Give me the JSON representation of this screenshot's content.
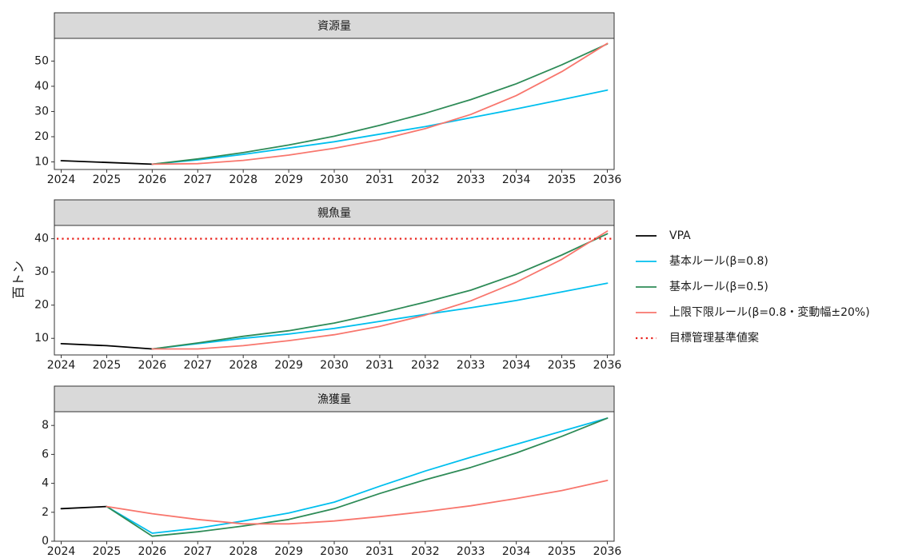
{
  "chart_data": {
    "type": "line",
    "ylabel": "百トン",
    "x": [
      2024,
      2025,
      2026,
      2027,
      2028,
      2029,
      2030,
      2031,
      2032,
      2033,
      2034,
      2035,
      2036
    ],
    "legend": {
      "placement": "right",
      "entries": [
        {
          "key": "vpa",
          "label": "VPA",
          "color": "#000000",
          "dash": "solid"
        },
        {
          "key": "basic08",
          "label": "基本ルール(β=0.8)",
          "color": "#00BFEE",
          "dash": "solid"
        },
        {
          "key": "basic05",
          "label": "基本ルール(β=0.5)",
          "color": "#2E8B57",
          "dash": "solid"
        },
        {
          "key": "cap",
          "label": "上限下限ルール(β=0.8・変動幅±20%)",
          "color": "#F8766D",
          "dash": "solid"
        },
        {
          "key": "target",
          "label": "目標管理基準値案",
          "color": "#E8201A",
          "dash": "dotted"
        }
      ]
    },
    "panels": [
      {
        "title": "資源量",
        "yticks": [
          10,
          20,
          30,
          40,
          50
        ],
        "ylim": [
          7,
          59
        ],
        "series": [
          {
            "key": "vpa",
            "x": [
              2024,
              2025,
              2026
            ],
            "values": [
              10.5,
              9.8,
              9.1
            ]
          },
          {
            "key": "basic08",
            "x": [
              2026,
              2027,
              2028,
              2029,
              2030,
              2031,
              2032,
              2033,
              2034,
              2035,
              2036
            ],
            "values": [
              9.1,
              10.8,
              13.0,
              15.5,
              18.0,
              21.0,
              24.0,
              27.5,
              31.0,
              34.7,
              38.5
            ]
          },
          {
            "key": "basic05",
            "x": [
              2026,
              2027,
              2028,
              2029,
              2030,
              2031,
              2032,
              2033,
              2034,
              2035,
              2036
            ],
            "values": [
              9.1,
              11.2,
              13.7,
              16.7,
              20.2,
              24.5,
              29.3,
              34.7,
              41.0,
              48.5,
              56.8
            ]
          },
          {
            "key": "cap",
            "x": [
              2026,
              2027,
              2028,
              2029,
              2030,
              2031,
              2032,
              2033,
              2034,
              2035,
              2036
            ],
            "values": [
              9.1,
              9.3,
              10.6,
              12.7,
              15.4,
              18.8,
              23.2,
              28.8,
              36.3,
              45.8,
              57.0
            ]
          }
        ]
      },
      {
        "title": "親魚量",
        "yticks": [
          10,
          20,
          30,
          40
        ],
        "ylim": [
          5,
          44
        ],
        "series": [
          {
            "key": "vpa",
            "x": [
              2024,
              2025,
              2026
            ],
            "values": [
              8.4,
              7.8,
              6.8
            ]
          },
          {
            "key": "basic08",
            "x": [
              2026,
              2027,
              2028,
              2029,
              2030,
              2031,
              2032,
              2033,
              2034,
              2035,
              2036
            ],
            "values": [
              6.8,
              8.4,
              10.0,
              11.3,
              13.0,
              15.1,
              17.2,
              19.2,
              21.4,
              24.0,
              26.6
            ]
          },
          {
            "key": "basic05",
            "x": [
              2026,
              2027,
              2028,
              2029,
              2030,
              2031,
              2032,
              2033,
              2034,
              2035,
              2036
            ],
            "values": [
              6.8,
              8.6,
              10.6,
              12.3,
              14.6,
              17.6,
              20.9,
              24.5,
              29.3,
              35.1,
              41.5
            ]
          },
          {
            "key": "cap",
            "x": [
              2026,
              2027,
              2028,
              2029,
              2030,
              2031,
              2032,
              2033,
              2034,
              2035,
              2036
            ],
            "values": [
              6.8,
              6.8,
              7.8,
              9.3,
              11.1,
              13.6,
              17.0,
              21.3,
              26.9,
              33.8,
              42.3
            ]
          },
          {
            "key": "target",
            "x": [
              2024,
              2036
            ],
            "values": [
              40.0,
              40.0
            ]
          }
        ]
      },
      {
        "title": "漁獲量",
        "yticks": [
          0,
          2,
          4,
          6,
          8
        ],
        "ylim": [
          0,
          8.95
        ],
        "series": [
          {
            "key": "vpa",
            "x": [
              2024,
              2025
            ],
            "values": [
              2.25,
              2.4
            ]
          },
          {
            "key": "basic08",
            "x": [
              2025,
              2026,
              2027,
              2028,
              2029,
              2030,
              2031,
              2032,
              2033,
              2034,
              2035,
              2036
            ],
            "values": [
              2.4,
              0.55,
              0.9,
              1.4,
              1.95,
              2.7,
              3.8,
              4.85,
              5.8,
              6.7,
              7.6,
              8.5
            ]
          },
          {
            "key": "basic05",
            "x": [
              2025,
              2026,
              2027,
              2028,
              2029,
              2030,
              2031,
              2032,
              2033,
              2034,
              2035,
              2036
            ],
            "values": [
              2.4,
              0.35,
              0.65,
              1.05,
              1.5,
              2.25,
              3.3,
              4.25,
              5.1,
              6.1,
              7.25,
              8.5
            ]
          },
          {
            "key": "cap",
            "x": [
              2025,
              2026,
              2027,
              2028,
              2029,
              2030,
              2031,
              2032,
              2033,
              2034,
              2035,
              2036
            ],
            "values": [
              2.4,
              1.9,
              1.5,
              1.2,
              1.2,
              1.4,
              1.7,
              2.05,
              2.45,
              2.95,
              3.5,
              4.2
            ]
          }
        ]
      }
    ]
  }
}
